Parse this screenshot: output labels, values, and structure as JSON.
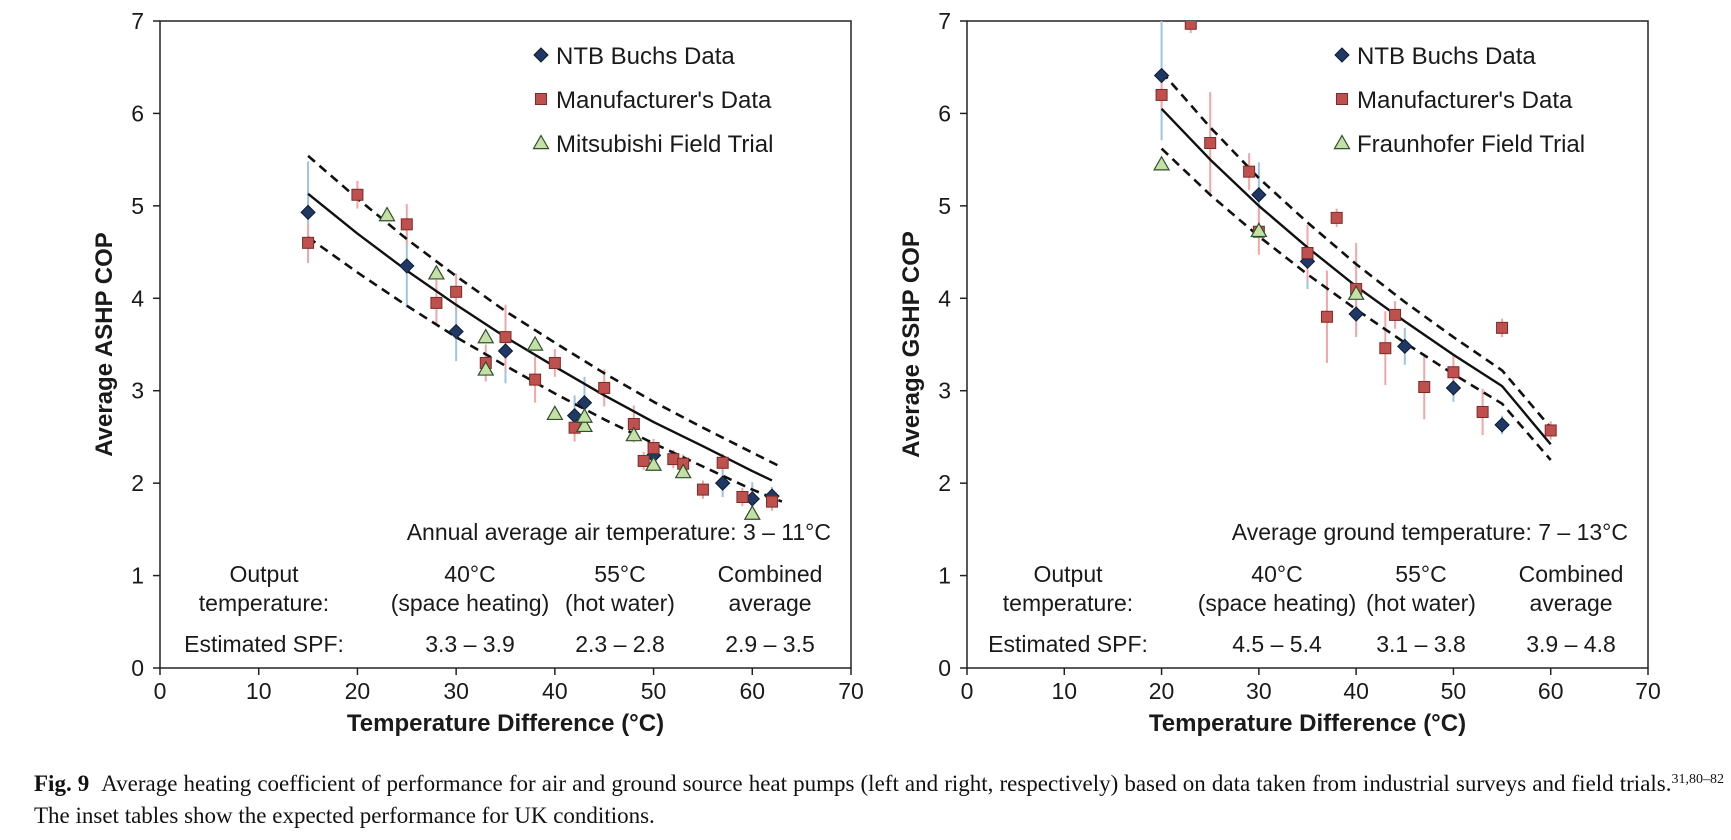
{
  "chart_data": [
    {
      "type": "scatter",
      "title": "",
      "xlabel": "Temperature Difference (°C)",
      "ylabel": "Average ASHP COP",
      "xlim": [
        0,
        70
      ],
      "ylim": [
        0,
        7
      ],
      "x_ticks": [
        "0",
        "10",
        "20",
        "30",
        "40",
        "50",
        "60",
        "70"
      ],
      "y_ticks": [
        "0",
        "1",
        "2",
        "3",
        "4",
        "5",
        "6",
        "7"
      ],
      "grid": false,
      "legend_position": "top-right",
      "series": [
        {
          "name": "NTB Buchs Data",
          "marker": "diamond",
          "color": "#1f3864",
          "error_color": "#9dc3e6",
          "points": [
            {
              "x": 15,
              "y": 4.93,
              "err": 0.55
            },
            {
              "x": 25,
              "y": 4.35,
              "err": 0.45
            },
            {
              "x": 30,
              "y": 3.64,
              "err": 0.32
            },
            {
              "x": 35,
              "y": 3.43,
              "err": 0.35
            },
            {
              "x": 42,
              "y": 2.73,
              "err": 0.22
            },
            {
              "x": 43,
              "y": 2.87,
              "err": 0.28
            },
            {
              "x": 50,
              "y": 2.3,
              "err": 0.15
            },
            {
              "x": 57,
              "y": 2.0,
              "err": 0.15
            },
            {
              "x": 60,
              "y": 1.83,
              "err": 0.18
            },
            {
              "x": 62,
              "y": 1.86,
              "err": 0.1
            }
          ]
        },
        {
          "name": "Manufacturer's Data",
          "marker": "square",
          "color": "#c0504d",
          "error_color": "#f4a6a6",
          "points": [
            {
              "x": 15,
              "y": 4.6,
              "err": 0.2
            },
            {
              "x": 20,
              "y": 5.12,
              "err": 0.15
            },
            {
              "x": 25,
              "y": 4.8,
              "err": 0.22
            },
            {
              "x": 28,
              "y": 3.95,
              "err": 0.25
            },
            {
              "x": 30,
              "y": 4.07,
              "err": 0.2
            },
            {
              "x": 33,
              "y": 3.3,
              "err": 0.2
            },
            {
              "x": 35,
              "y": 3.58,
              "err": 0.35
            },
            {
              "x": 38,
              "y": 3.12,
              "err": 0.25
            },
            {
              "x": 40,
              "y": 3.3,
              "err": 0.15
            },
            {
              "x": 42,
              "y": 2.6,
              "err": 0.15
            },
            {
              "x": 45,
              "y": 3.03,
              "err": 0.2
            },
            {
              "x": 48,
              "y": 2.64,
              "err": 0.2
            },
            {
              "x": 49,
              "y": 2.24,
              "err": 0.1
            },
            {
              "x": 50,
              "y": 2.38,
              "err": 0.1
            },
            {
              "x": 52,
              "y": 2.26,
              "err": 0.1
            },
            {
              "x": 53,
              "y": 2.21,
              "err": 0.1
            },
            {
              "x": 55,
              "y": 1.93,
              "err": 0.1
            },
            {
              "x": 57,
              "y": 2.22,
              "err": 0.1
            },
            {
              "x": 59,
              "y": 1.85,
              "err": 0.1
            },
            {
              "x": 62,
              "y": 1.8,
              "err": 0.1
            }
          ]
        },
        {
          "name": "Mitsubishi Field Trial",
          "marker": "triangle",
          "color": "#c4e0a4",
          "points": [
            {
              "x": 23,
              "y": 4.9
            },
            {
              "x": 28,
              "y": 4.27
            },
            {
              "x": 33,
              "y": 3.58
            },
            {
              "x": 33,
              "y": 3.23
            },
            {
              "x": 38,
              "y": 3.5
            },
            {
              "x": 40,
              "y": 2.75
            },
            {
              "x": 43,
              "y": 2.62
            },
            {
              "x": 43,
              "y": 2.72
            },
            {
              "x": 48,
              "y": 2.52
            },
            {
              "x": 50,
              "y": 2.2
            },
            {
              "x": 53,
              "y": 2.12
            },
            {
              "x": 60,
              "y": 1.67
            }
          ]
        }
      ],
      "fit_line": {
        "x": [
          15,
          20,
          25,
          30,
          35,
          40,
          45,
          50,
          55,
          60,
          62
        ],
        "y": [
          5.13,
          4.7,
          4.3,
          3.93,
          3.58,
          3.26,
          2.95,
          2.66,
          2.4,
          2.13,
          2.03
        ]
      },
      "upper_bound": {
        "x": [
          15,
          20,
          25,
          30,
          35,
          40,
          45,
          50,
          55,
          60,
          63
        ],
        "y": [
          5.54,
          5.08,
          4.64,
          4.24,
          3.86,
          3.52,
          3.19,
          2.88,
          2.6,
          2.33,
          2.17
        ]
      },
      "lower_bound": {
        "x": [
          15,
          20,
          25,
          30,
          35,
          40,
          45,
          50,
          55,
          60,
          63
        ],
        "y": [
          4.66,
          4.28,
          3.92,
          3.58,
          3.27,
          2.97,
          2.69,
          2.43,
          2.18,
          1.93,
          1.8
        ]
      },
      "inset": {
        "note": "Annual average air temperature: 3 – 11°C",
        "col_output_l1": "Output",
        "col_output_l2": "temperature:",
        "col_space_l1": "40°C",
        "col_space_l2": "(space heating)",
        "col_water_l1": "55°C",
        "col_water_l2": "(hot water)",
        "col_comb_l1": "Combined",
        "col_comb_l2": "average",
        "spf_label": "Estimated SPF:",
        "spf_space": "3.3 – 3.9",
        "spf_water": "2.3 – 2.8",
        "spf_comb": "2.9 – 3.5"
      }
    },
    {
      "type": "scatter",
      "title": "",
      "xlabel": "Temperature Difference (°C)",
      "ylabel": "Average GSHP COP",
      "xlim": [
        0,
        70
      ],
      "ylim": [
        0,
        7
      ],
      "x_ticks": [
        "0",
        "10",
        "20",
        "30",
        "40",
        "50",
        "60",
        "70"
      ],
      "y_ticks": [
        "0",
        "1",
        "2",
        "3",
        "4",
        "5",
        "6",
        "7"
      ],
      "grid": false,
      "legend_position": "top-right",
      "series": [
        {
          "name": "NTB Buchs Data",
          "marker": "diamond",
          "color": "#1f3864",
          "error_color": "#9dc3e6",
          "points": [
            {
              "x": 20,
              "y": 6.41,
              "err": 0.7
            },
            {
              "x": 30,
              "y": 5.12,
              "err": 0.35
            },
            {
              "x": 35,
              "y": 4.4,
              "err": 0.3
            },
            {
              "x": 40,
              "y": 3.83,
              "err": 0.25
            },
            {
              "x": 45,
              "y": 3.48,
              "err": 0.2
            },
            {
              "x": 50,
              "y": 3.03,
              "err": 0.15
            },
            {
              "x": 55,
              "y": 2.63,
              "err": 0.1
            }
          ]
        },
        {
          "name": "Manufacturer's Data",
          "marker": "square",
          "color": "#c0504d",
          "error_color": "#f4a6a6",
          "points": [
            {
              "x": 20,
              "y": 6.2,
              "err": 0.15
            },
            {
              "x": 23,
              "y": 6.97,
              "err": 0.1
            },
            {
              "x": 25,
              "y": 5.68,
              "err": 0.55
            },
            {
              "x": 29,
              "y": 5.37,
              "err": 0.2
            },
            {
              "x": 30,
              "y": 4.72,
              "err": 0.25
            },
            {
              "x": 35,
              "y": 4.49,
              "err": 0.3
            },
            {
              "x": 37,
              "y": 3.8,
              "err": 0.5
            },
            {
              "x": 38,
              "y": 4.87,
              "err": 0.1
            },
            {
              "x": 40,
              "y": 4.1,
              "err": 0.5
            },
            {
              "x": 43,
              "y": 3.46,
              "err": 0.4
            },
            {
              "x": 44,
              "y": 3.82,
              "err": 0.15
            },
            {
              "x": 47,
              "y": 3.04,
              "err": 0.35
            },
            {
              "x": 50,
              "y": 3.2,
              "err": 0.2
            },
            {
              "x": 53,
              "y": 2.77,
              "err": 0.25
            },
            {
              "x": 55,
              "y": 3.68,
              "err": 0.1
            },
            {
              "x": 60,
              "y": 2.57,
              "err": 0.1
            }
          ]
        },
        {
          "name": "Fraunhofer Field Trial",
          "marker": "triangle",
          "color": "#c4e0a4",
          "points": [
            {
              "x": 20,
              "y": 5.45
            },
            {
              "x": 30,
              "y": 4.73
            },
            {
              "x": 40,
              "y": 4.05
            }
          ]
        }
      ],
      "fit_line": {
        "x": [
          20,
          25,
          30,
          35,
          40,
          45,
          50,
          55,
          60
        ],
        "y": [
          6.05,
          5.5,
          5.0,
          4.55,
          4.13,
          3.75,
          3.39,
          3.05,
          2.42
        ]
      },
      "upper_bound": {
        "x": [
          20,
          25,
          30,
          35,
          40,
          45,
          50,
          55,
          60
        ],
        "y": [
          6.45,
          5.85,
          5.3,
          4.82,
          4.37,
          3.96,
          3.58,
          3.22,
          2.6
        ]
      },
      "lower_bound": {
        "x": [
          20,
          25,
          30,
          35,
          40,
          45,
          50,
          55,
          60
        ],
        "y": [
          5.62,
          5.12,
          4.67,
          4.26,
          3.88,
          3.52,
          3.18,
          2.86,
          2.25
        ]
      },
      "inset": {
        "note": "Average ground temperature: 7 – 13°C",
        "col_output_l1": "Output",
        "col_output_l2": "temperature:",
        "col_space_l1": "40°C",
        "col_space_l2": "(space heating)",
        "col_water_l1": "55°C",
        "col_water_l2": "(hot water)",
        "col_comb_l1": "Combined",
        "col_comb_l2": "average",
        "spf_label": "Estimated SPF:",
        "spf_space": "4.5 – 5.4",
        "spf_water": "3.1 – 3.8",
        "spf_comb": "3.9 – 4.8"
      }
    }
  ],
  "caption": {
    "label": "Fig. 9",
    "text": "Average heating coefficient of performance for air and ground source heat pumps (left and right, respectively) based on data taken from industrial surveys and field trials.",
    "refs": "31,80–82",
    "text2": " The inset tables show the expected performance for UK conditions."
  }
}
